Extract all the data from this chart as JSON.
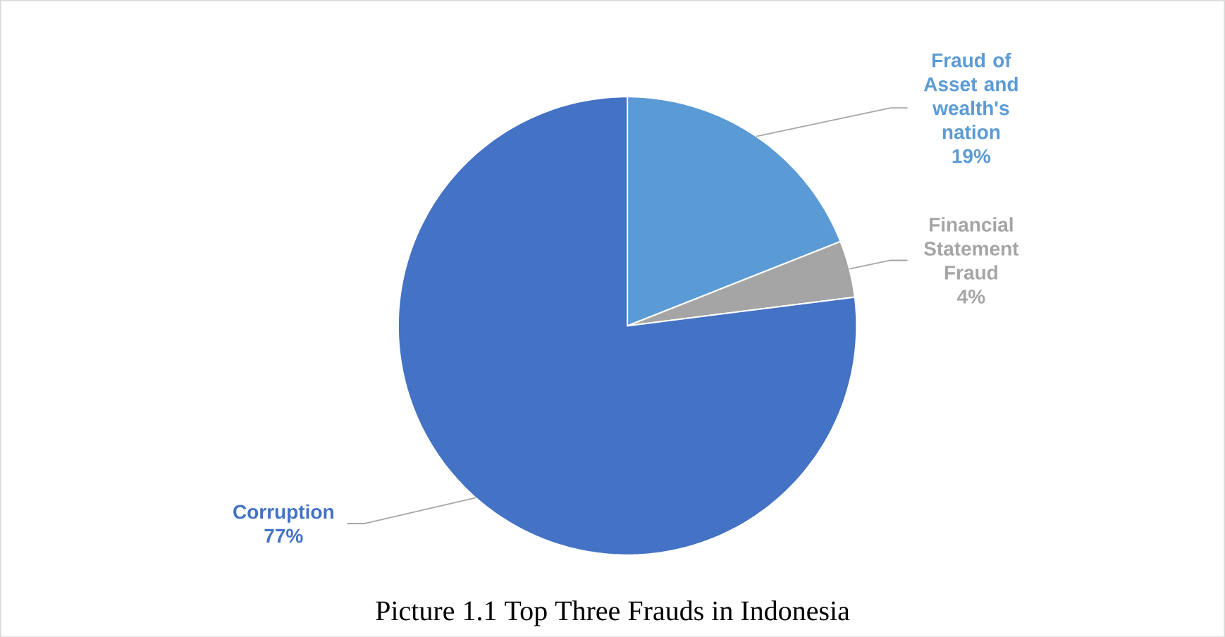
{
  "chart_data": {
    "type": "pie",
    "title": "Picture 1.1 Top Three Frauds in Indonesia",
    "categories": [
      "Fraud of Asset and wealth's nation",
      "Financial Statement Fraud",
      "Corruption"
    ],
    "values": [
      19,
      4,
      77
    ],
    "value_labels": [
      "19%",
      "4%",
      "77%"
    ],
    "colors": [
      "#5b9bd5",
      "#a5a5a5",
      "#4472c4"
    ]
  }
}
